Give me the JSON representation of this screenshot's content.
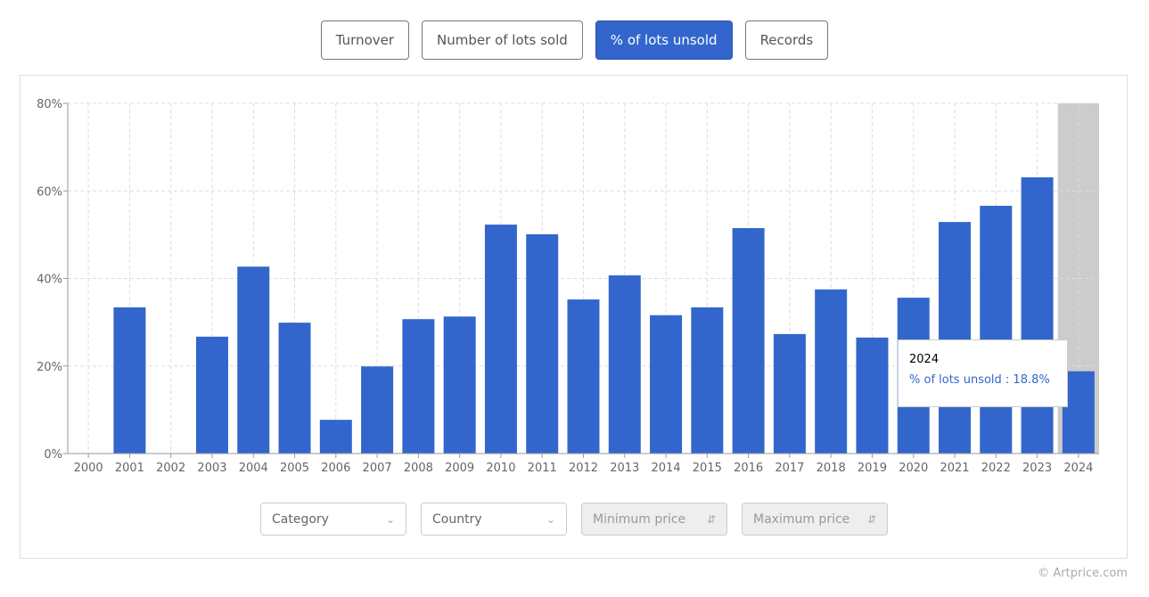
{
  "tabs": [
    {
      "label": "Turnover",
      "active": false
    },
    {
      "label": "Number of lots sold",
      "active": false
    },
    {
      "label": "% of lots unsold",
      "active": true
    },
    {
      "label": "Records",
      "active": false
    }
  ],
  "filters": {
    "category": "Category",
    "country": "Country",
    "min_price": "Minimum price",
    "max_price": "Maximum price"
  },
  "tooltip": {
    "title": "2024",
    "value": "% of lots unsold : 18.8%"
  },
  "copyright": "© Artprice.com",
  "colors": {
    "bar": "#3366cc",
    "highlight": "#cccccc"
  },
  "chart_data": {
    "type": "bar",
    "title": "",
    "xlabel": "",
    "ylabel": "% of lots unsold",
    "categories": [
      "2000",
      "2001",
      "2002",
      "2003",
      "2004",
      "2005",
      "2006",
      "2007",
      "2008",
      "2009",
      "2010",
      "2011",
      "2012",
      "2013",
      "2014",
      "2015",
      "2016",
      "2017",
      "2018",
      "2019",
      "2020",
      "2021",
      "2022",
      "2023",
      "2024"
    ],
    "values": [
      0,
      33.4,
      0,
      26.7,
      42.7,
      29.9,
      7.7,
      19.9,
      30.7,
      31.3,
      52.3,
      50.1,
      35.2,
      40.7,
      31.6,
      33.4,
      51.5,
      27.3,
      37.5,
      26.5,
      35.6,
      52.9,
      56.6,
      63.1,
      18.8
    ],
    "ylim": [
      0,
      80
    ],
    "yticks": [
      "0%",
      "20%",
      "40%",
      "60%",
      "80%"
    ],
    "grid": true,
    "highlighted": "2024"
  }
}
